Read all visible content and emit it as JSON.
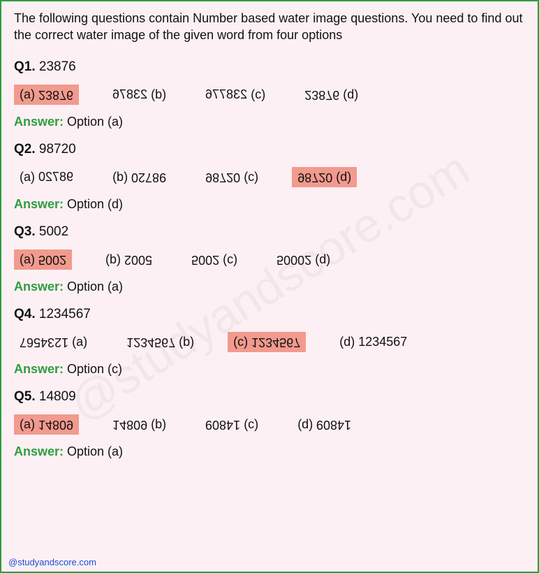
{
  "intro": "The following questions contain Number based water image questions. You need to find out the correct water image of the given word from four options",
  "answer_label": "Answer:",
  "footer": "@studyandscore.com",
  "watermark": "@studyandscore.com",
  "questions": [
    {
      "id": "Q1.",
      "num": "23876",
      "answer": "Option (a)",
      "opts": [
        {
          "label": "(a)",
          "text": "23876",
          "flip": true,
          "mirror": false,
          "hl": true,
          "reverse_label": false
        },
        {
          "label": "(b)",
          "text": "23876",
          "flip": false,
          "mirror": true,
          "hl": false,
          "reverse_label": true
        },
        {
          "label": "(c)",
          "text": "238776",
          "flip": false,
          "mirror": true,
          "hl": false,
          "reverse_label": true
        },
        {
          "label": "(d)",
          "text": "23876",
          "flip": true,
          "mirror": false,
          "hl": false,
          "reverse_label": true
        }
      ]
    },
    {
      "id": "Q2.",
      "num": "98720",
      "answer": "Option (d)",
      "opts": [
        {
          "label": "(a)",
          "text": "98720",
          "flip": false,
          "mirror": true,
          "hl": false,
          "reverse_label": false
        },
        {
          "label": "(b)",
          "text": "98720",
          "flip": true,
          "mirror": true,
          "hl": false,
          "reverse_label": false
        },
        {
          "label": "(c)",
          "text": "98720",
          "flip": true,
          "mirror": false,
          "hl": false,
          "reverse_label": true
        },
        {
          "label": "(d)",
          "text": "98720",
          "flip": true,
          "mirror": false,
          "hl": true,
          "reverse_label": true
        }
      ]
    },
    {
      "id": "Q3.",
      "num": "5002",
      "answer": "Option (a)",
      "opts": [
        {
          "label": "(a)",
          "text": "5002",
          "flip": true,
          "mirror": false,
          "hl": true,
          "reverse_label": false
        },
        {
          "label": "(b)",
          "text": "5002",
          "flip": true,
          "mirror": true,
          "hl": false,
          "reverse_label": false
        },
        {
          "label": "(c)",
          "text": "5002",
          "flip": true,
          "mirror": false,
          "hl": false,
          "reverse_label": true
        },
        {
          "label": "(d)",
          "text": "50002",
          "flip": true,
          "mirror": false,
          "hl": false,
          "reverse_label": true
        }
      ]
    },
    {
      "id": "Q4.",
      "num": "1234567",
      "answer": "Option (c)",
      "opts": [
        {
          "label": "(a)",
          "text": "1234567",
          "flip": true,
          "mirror": true,
          "hl": false,
          "reverse_label": true
        },
        {
          "label": "(b)",
          "text": "1234567",
          "flip": true,
          "mirror": false,
          "hl": false,
          "reverse_label": true
        },
        {
          "label": "(c)",
          "text": "1234567",
          "flip": true,
          "mirror": false,
          "hl": true,
          "reverse_label": false
        },
        {
          "label": "(d)",
          "text": "1234567",
          "flip": false,
          "mirror": false,
          "hl": false,
          "reverse_label": false
        }
      ]
    },
    {
      "id": "Q5.",
      "num": "14809",
      "answer": "Option (a)",
      "opts": [
        {
          "label": "(a)",
          "text": "14809",
          "flip": true,
          "mirror": false,
          "hl": true,
          "reverse_label": false
        },
        {
          "label": "(b)",
          "text": "14809",
          "flip": true,
          "mirror": false,
          "hl": false,
          "reverse_label": true
        },
        {
          "label": "(c)",
          "text": "14809",
          "flip": true,
          "mirror": true,
          "hl": false,
          "reverse_label": true
        },
        {
          "label": "(d)",
          "text": "14809",
          "flip": true,
          "mirror": true,
          "hl": false,
          "reverse_label": false
        }
      ]
    }
  ]
}
